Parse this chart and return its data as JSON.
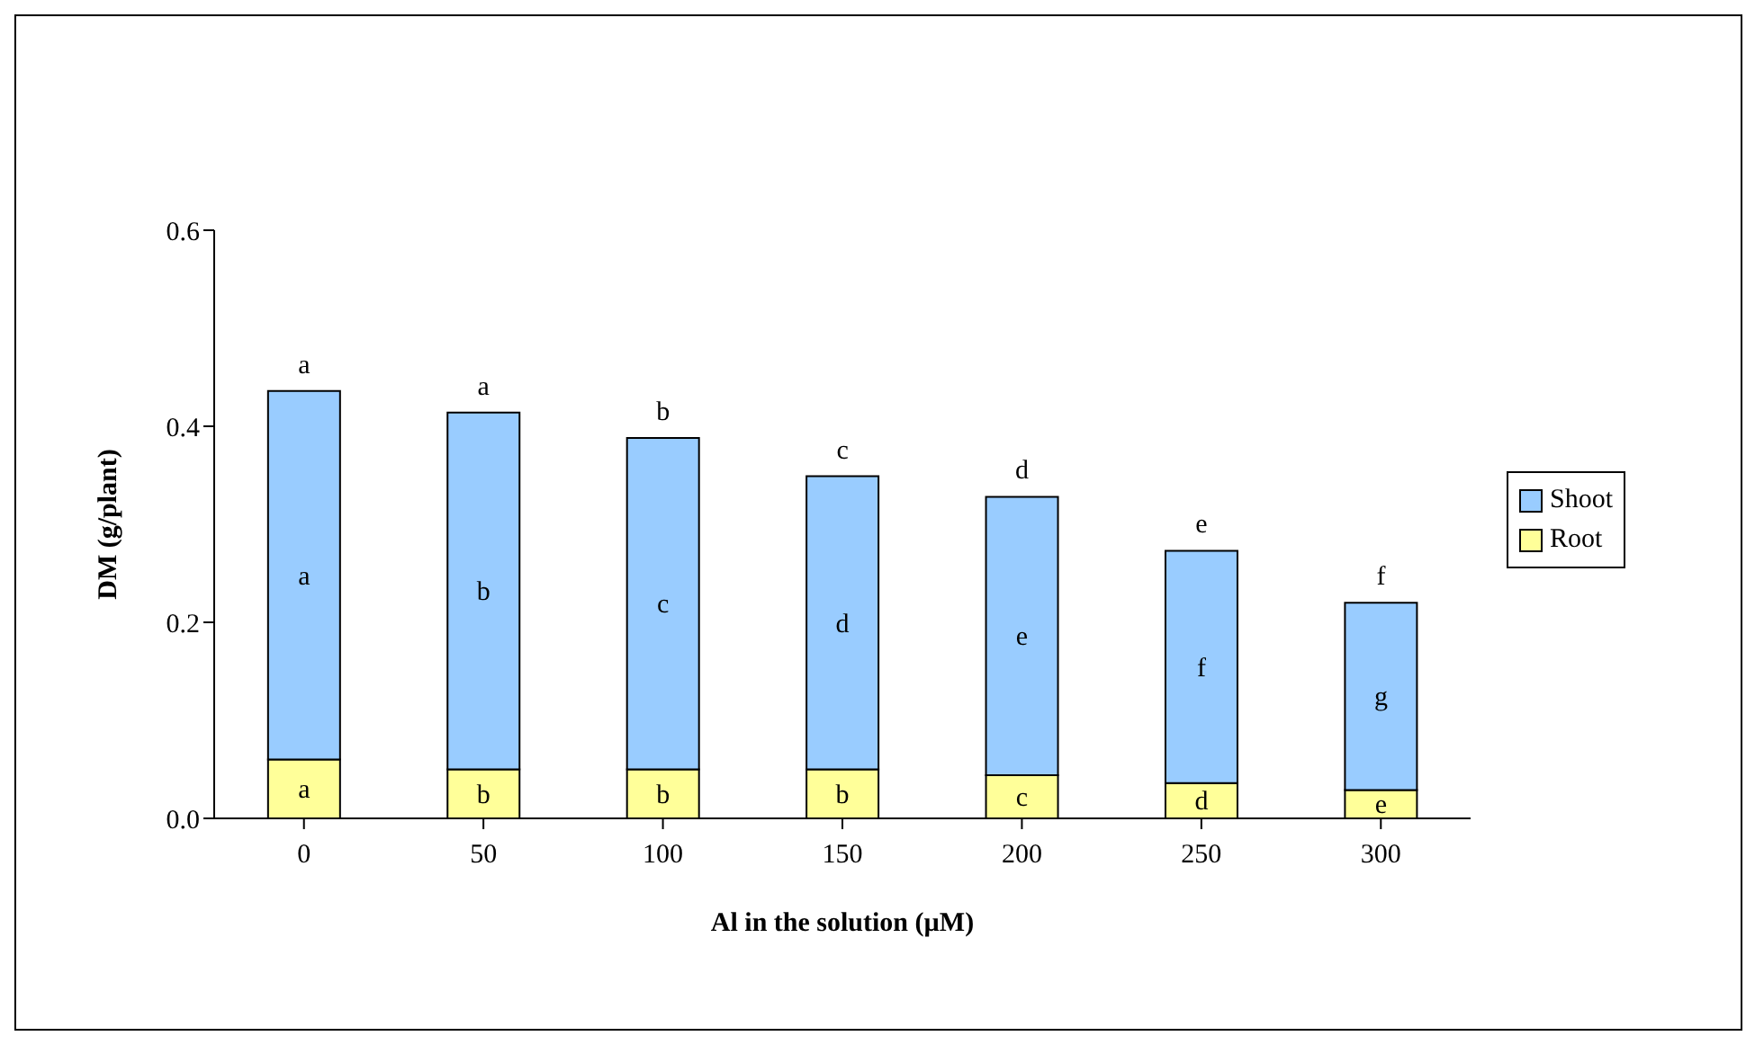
{
  "chart_data": {
    "type": "bar",
    "stacked": true,
    "xlabel": "Al in the solution (µM)",
    "ylabel": "DM (g/plant)",
    "categories": [
      "0",
      "50",
      "100",
      "150",
      "200",
      "250",
      "300"
    ],
    "series": [
      {
        "name": "Root",
        "color": "#ffff99",
        "values": [
          0.06,
          0.05,
          0.05,
          0.05,
          0.044,
          0.036,
          0.029
        ],
        "value_labels": [
          "a",
          "b",
          "b",
          "b",
          "c",
          "d",
          "e"
        ]
      },
      {
        "name": "Shoot",
        "color": "#99ccff",
        "values": [
          0.376,
          0.364,
          0.338,
          0.299,
          0.284,
          0.237,
          0.191
        ],
        "value_labels": [
          "a",
          "b",
          "c",
          "d",
          "e",
          "f",
          "g"
        ]
      }
    ],
    "totals": [
      "a",
      "a",
      "b",
      "c",
      "d",
      "e",
      "f"
    ],
    "ylim": [
      0,
      0.6
    ],
    "yticks": [
      {
        "value": 0,
        "label": "0.0"
      },
      0.2,
      0.4,
      0.6
    ],
    "grid": false,
    "legend": "right"
  }
}
